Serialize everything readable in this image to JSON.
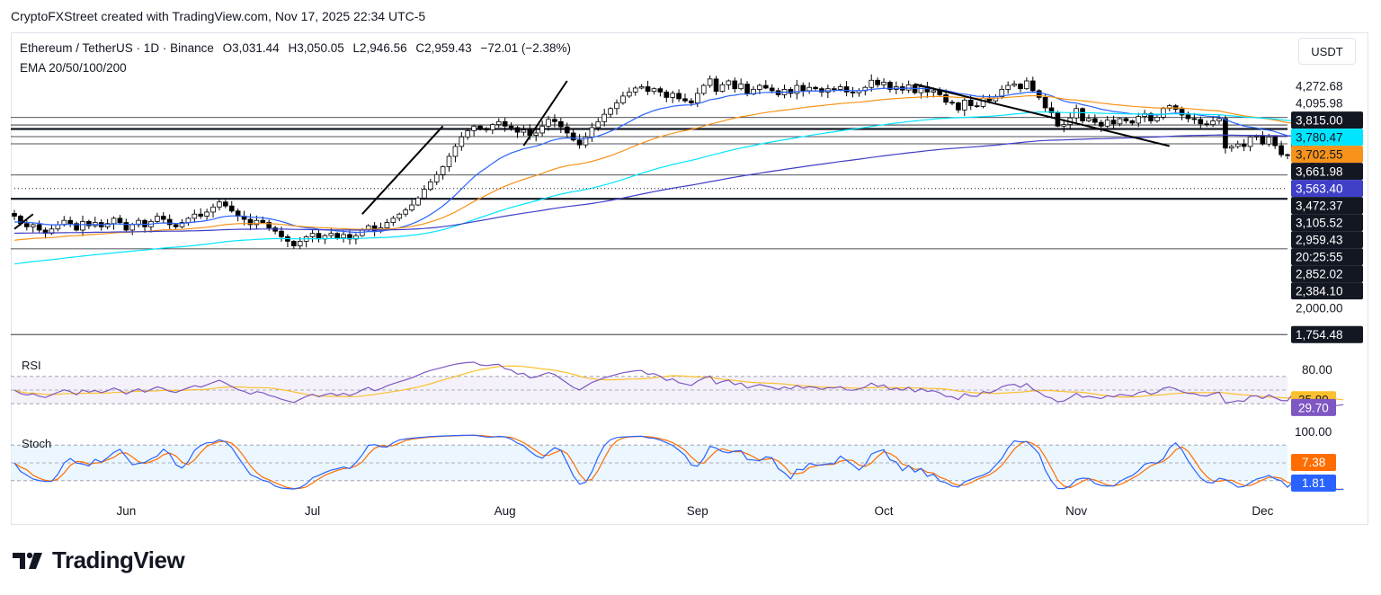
{
  "header": {
    "caption": "CryptoFXStreet created with TradingView.com, Nov 17, 2025 22:34 UTC-5"
  },
  "legend": {
    "symbol": "Ethereum / TetherUS · 1D · Binance",
    "open": "O3,031.44",
    "high": "H3,050.05",
    "low": "L2,946.56",
    "close": "C2,959.43",
    "change": "−72.01 (−2.38%)",
    "indicator": "EMA 20/50/100/200"
  },
  "currency_button": "USDT",
  "rsi_label": "RSI",
  "stoch_label": "Stoch",
  "colors": {
    "up": "#ffffff",
    "down": "#000000",
    "ema20": "#2962ff",
    "ema50": "#f7931a",
    "ema100": "#00e5ff",
    "ema200": "#3f3fc8",
    "rsi": "#7e57c2",
    "rsi_ma": "#fbc02d",
    "stoch_k": "#2962ff",
    "stoch_d": "#ff6d00",
    "level_dark": "#131722"
  },
  "chart_data": [
    {
      "type": "candlestick",
      "pane": "price",
      "ylim": [
        1700,
        4350
      ],
      "x_ticks": [
        "Jun",
        "Jul",
        "Aug",
        "Sep",
        "Oct",
        "Nov",
        "Dec"
      ],
      "price_labels": [
        {
          "value": 4272.68,
          "text": "4,272.68",
          "style": "plain"
        },
        {
          "value": 4095.98,
          "text": "4,095.98",
          "style": "plain"
        },
        {
          "value": 3815.0,
          "text": "3,815.00",
          "style": "dark"
        },
        {
          "value": 3780.47,
          "text": "3,780.47",
          "style": "ema100"
        },
        {
          "value": 3702.55,
          "text": "3,702.55",
          "style": "ema50"
        },
        {
          "value": 3661.98,
          "text": "3,661.98",
          "style": "dark"
        },
        {
          "value": 3563.4,
          "text": "3,563.40",
          "style": "ema200"
        },
        {
          "value": 3472.37,
          "text": "3,472.37",
          "style": "dark"
        },
        {
          "value": 3105.52,
          "text": "3,105.52",
          "style": "dark"
        },
        {
          "value": 2959.43,
          "text": "2,959.43",
          "style": "dark-top"
        },
        {
          "value": 2959.43,
          "text": "20:25:55",
          "style": "dark-bottom"
        },
        {
          "value": 2852.02,
          "text": "2,852.02",
          "style": "dark"
        },
        {
          "value": 2384.1,
          "text": "2,384.10",
          "style": "dark"
        },
        {
          "value": 2000.0,
          "text": "2,000.00",
          "style": "plain"
        },
        {
          "value": 1754.48,
          "text": "1,754.48",
          "style": "dark"
        }
      ],
      "horizontal_levels": [
        {
          "value": 3815.0,
          "weight": "thin"
        },
        {
          "value": 3715.0,
          "weight": "thin"
        },
        {
          "value": 3661.98,
          "weight": "thick"
        },
        {
          "value": 3563.4,
          "weight": "thin"
        },
        {
          "value": 3472.37,
          "weight": "thin"
        },
        {
          "value": 3105.52,
          "weight": "thin"
        },
        {
          "value": 2852.02,
          "weight": "thick"
        },
        {
          "value": 2384.1,
          "weight": "thin"
        },
        {
          "value": 1754.48,
          "weight": "thin"
        }
      ],
      "trendlines": [
        {
          "from": [
            "2025-05-14",
            2560
          ],
          "to": [
            "2025-05-17",
            2700
          ]
        },
        {
          "from": [
            "2025-07-09",
            2700
          ],
          "to": [
            "2025-07-22",
            3700
          ]
        },
        {
          "from": [
            "2025-08-04",
            3450
          ],
          "to": [
            "2025-08-11",
            4350
          ]
        },
        {
          "from": [
            "2025-10-06",
            4300
          ],
          "to": [
            "2025-11-16",
            3445
          ]
        }
      ],
      "series": [
        {
          "name": "ETH/USDT",
          "x_start": "2025-05-14",
          "x_end": "2025-11-17",
          "closes": [
            2680,
            2610,
            2580,
            2600,
            2550,
            2520,
            2560,
            2600,
            2640,
            2610,
            2550,
            2630,
            2590,
            2620,
            2580,
            2610,
            2660,
            2620,
            2550,
            2600,
            2640,
            2580,
            2630,
            2680,
            2650,
            2600,
            2580,
            2620,
            2660,
            2700,
            2680,
            2720,
            2770,
            2820,
            2780,
            2730,
            2680,
            2650,
            2600,
            2640,
            2620,
            2570,
            2540,
            2490,
            2450,
            2410,
            2450,
            2490,
            2520,
            2470,
            2500,
            2520,
            2480,
            2510,
            2470,
            2500,
            2550,
            2590,
            2540,
            2570,
            2620,
            2660,
            2700,
            2740,
            2790,
            2860,
            2950,
            3030,
            3110,
            3200,
            3320,
            3440,
            3560,
            3640,
            3700,
            3660,
            3650,
            3720,
            3760,
            3700,
            3680,
            3620,
            3650,
            3580,
            3610,
            3700,
            3790,
            3760,
            3690,
            3610,
            3520,
            3460,
            3560,
            3680,
            3760,
            3860,
            3940,
            4020,
            4120,
            4180,
            4240,
            4260,
            4190,
            4230,
            4180,
            4100,
            4160,
            4080,
            4050,
            4020,
            4160,
            4280,
            4380,
            4190,
            4290,
            4350,
            4230,
            4300,
            4150,
            4220,
            4280,
            4240,
            4200,
            4140,
            4220,
            4160,
            4280,
            4200,
            4250,
            4230,
            4180,
            4230,
            4220,
            4260,
            4180,
            4170,
            4200,
            4250,
            4360,
            4290,
            4330,
            4220,
            4260,
            4210,
            4290,
            4170,
            4260,
            4180,
            4200,
            4140,
            4030,
            4020,
            3920,
            4060,
            3980,
            3970,
            4090,
            4050,
            4110,
            4220,
            4280,
            4300,
            4230,
            4350,
            4200,
            4100,
            3950,
            3880,
            3700,
            3720,
            3810,
            3940,
            3770,
            3800,
            3750,
            3700,
            3780,
            3730,
            3800,
            3770,
            3740,
            3830,
            3870,
            3770,
            3820,
            3940,
            3980,
            3930,
            3850,
            3800,
            3790,
            3730,
            3720,
            3770,
            3800,
            3420,
            3440,
            3470,
            3440,
            3560,
            3570,
            3470,
            3560,
            3450,
            3340,
            3330,
            3540,
            3450,
            3350,
            3210,
            3160,
            3100,
            3020,
            2940,
            2960
          ]
        }
      ],
      "overlays": [
        {
          "name": "EMA 20",
          "value_today": 3105.52
        },
        {
          "name": "EMA 50",
          "value_today": 3702.55
        },
        {
          "name": "EMA 100",
          "value_today": 3780.47
        },
        {
          "name": "EMA 200",
          "value_today": 3563.4
        }
      ],
      "legend_position": "top-left"
    },
    {
      "type": "line",
      "pane": "rsi",
      "ylim": [
        0,
        100
      ],
      "levels": [
        70,
        50,
        30
      ],
      "y_tick": "80.00",
      "series": [
        {
          "name": "RSI",
          "last": 29.7,
          "label": "29.70"
        },
        {
          "name": "RSI-based MA",
          "last": 35.89,
          "label": "35.89"
        }
      ]
    },
    {
      "type": "line",
      "pane": "stoch",
      "ylim": [
        0,
        100
      ],
      "levels": [
        80,
        50,
        20
      ],
      "y_tick": "100.00",
      "series": [
        {
          "name": "%K",
          "last": 1.81,
          "label": "1.81"
        },
        {
          "name": "%D",
          "last": 7.38,
          "label": "7.38"
        }
      ]
    }
  ],
  "footer": {
    "brand": "TradingView"
  }
}
